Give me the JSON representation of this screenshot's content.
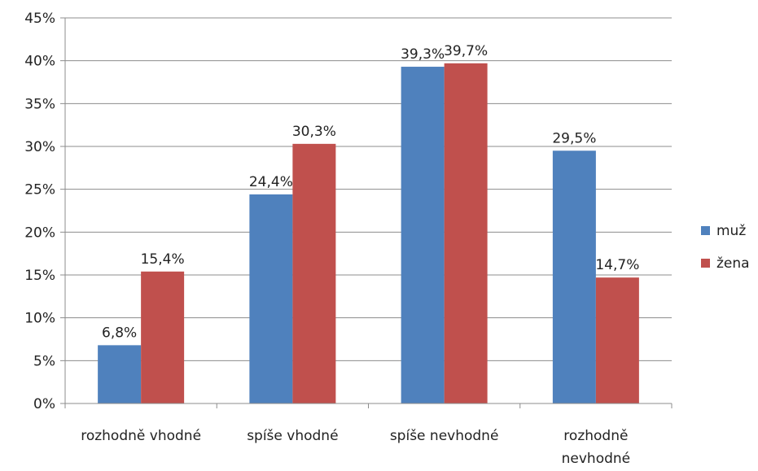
{
  "chart_data": {
    "type": "bar",
    "categories": [
      [
        "rozhodně vhodné"
      ],
      [
        "spíše vhodné"
      ],
      [
        "spíše nevhodné"
      ],
      [
        "rozhodně",
        "nevhodné"
      ]
    ],
    "series": [
      {
        "name": "muž",
        "color": "#4f81bd",
        "values": [
          6.8,
          24.4,
          39.3,
          29.5
        ],
        "labels": [
          "6,8%",
          "24,4%",
          "39,3%",
          "29,5%"
        ]
      },
      {
        "name": "žena",
        "color": "#c0504d",
        "values": [
          15.4,
          30.3,
          39.7,
          14.7
        ],
        "labels": [
          "15,4%",
          "30,3%",
          "39,7%",
          "14,7%"
        ]
      }
    ],
    "yticks": [
      {
        "value": 0,
        "label": "0%"
      },
      {
        "value": 5,
        "label": "5%"
      },
      {
        "value": 10,
        "label": "10%"
      },
      {
        "value": 15,
        "label": "15%"
      },
      {
        "value": 20,
        "label": "20%"
      },
      {
        "value": 25,
        "label": "25%"
      },
      {
        "value": 30,
        "label": "30%"
      },
      {
        "value": 35,
        "label": "35%"
      },
      {
        "value": 40,
        "label": "40%"
      },
      {
        "value": 45,
        "label": "45%"
      }
    ],
    "ylim": [
      0,
      45
    ],
    "grid": true,
    "legend_position": "right"
  }
}
